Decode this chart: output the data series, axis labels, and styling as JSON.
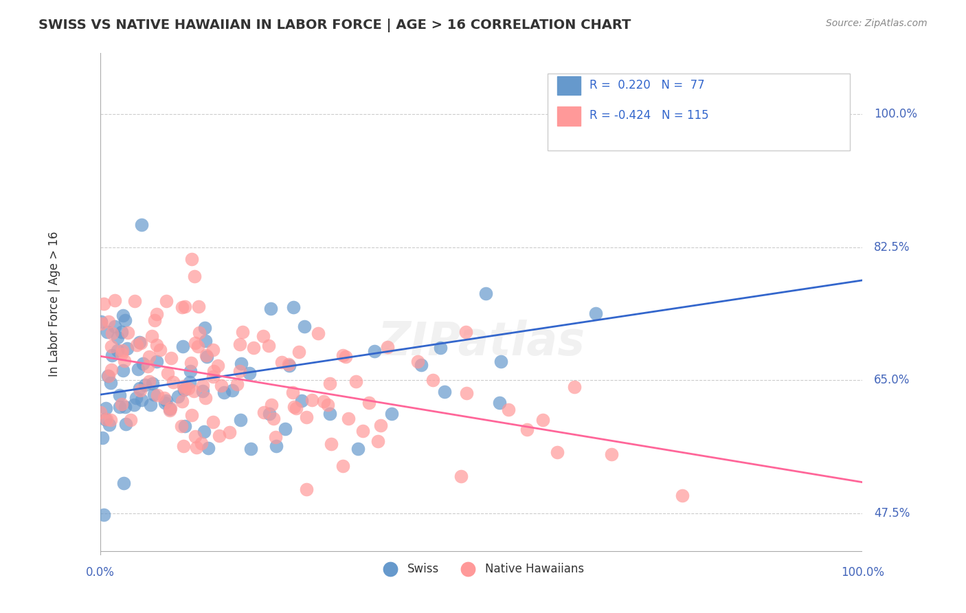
{
  "title": "SWISS VS NATIVE HAWAIIAN IN LABOR FORCE | AGE > 16 CORRELATION CHART",
  "source": "Source: ZipAtlas.com",
  "ylabel": "In Labor Force | Age > 16",
  "xlabel": "",
  "xlim": [
    0.0,
    100.0
  ],
  "ylim": [
    42.0,
    105.0
  ],
  "yticks": [
    47.5,
    65.0,
    82.5,
    100.0
  ],
  "xticks": [
    0.0,
    100.0
  ],
  "xtick_labels": [
    "0.0%",
    "100.0%"
  ],
  "ytick_labels": [
    "47.5%",
    "65.0%",
    "82.5%",
    "100.0%"
  ],
  "blue_R": 0.22,
  "blue_N": 77,
  "pink_R": -0.424,
  "pink_N": 115,
  "blue_color": "#6699CC",
  "pink_color": "#FF9999",
  "blue_line_color": "#3366CC",
  "pink_line_color": "#FF6699",
  "background_color": "#FFFFFF",
  "grid_color": "#CCCCCC",
  "title_color": "#333333",
  "legend_label_blue": "Swiss",
  "legend_label_pink": "Native Hawaiians",
  "watermark": "ZIPatlas",
  "blue_seed": 42,
  "pink_seed": 7,
  "blue_x_mean": 15.0,
  "blue_x_std": 12.0,
  "pink_x_mean": 25.0,
  "pink_x_std": 18.0
}
